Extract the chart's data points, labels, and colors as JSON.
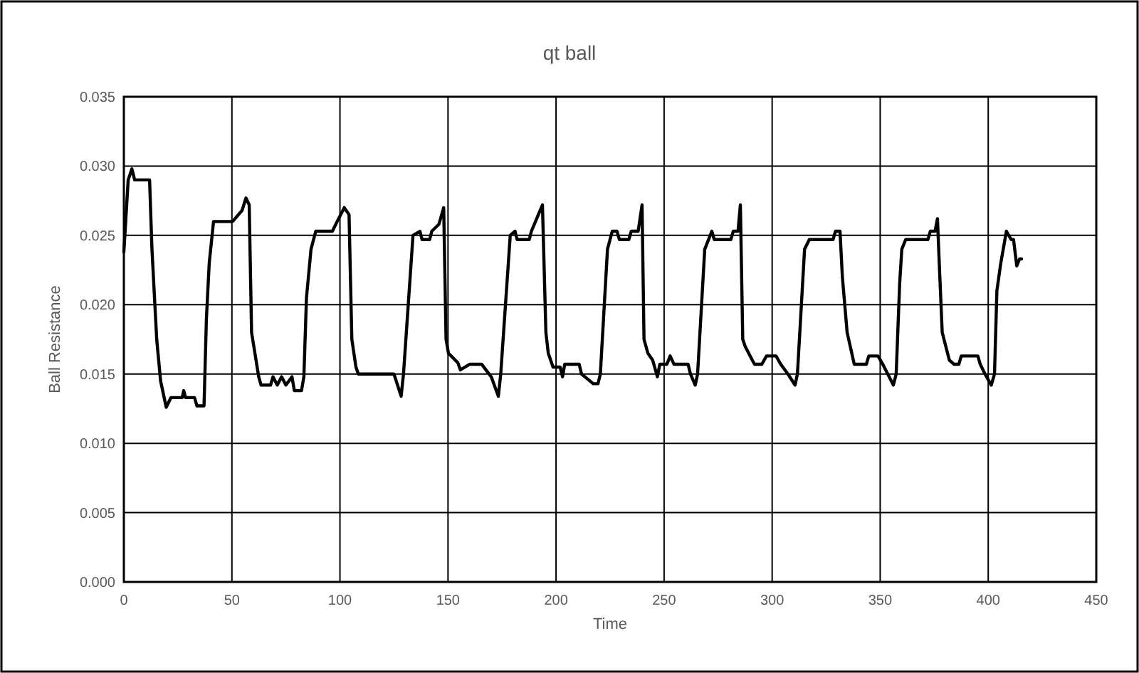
{
  "chart_data": {
    "type": "line",
    "title": "qt ball",
    "xlabel": "Time",
    "ylabel": "Ball Resistance",
    "xlim": [
      0,
      450
    ],
    "xticks": [
      0,
      50,
      100,
      150,
      200,
      250,
      300,
      350,
      400,
      450
    ],
    "ylim": [
      0,
      0.035
    ],
    "yticks": [
      {
        "value": 0,
        "label": "0.000"
      },
      {
        "value": 0.005,
        "label": "0.005"
      },
      {
        "value": 0.01,
        "label": "0.010"
      },
      {
        "value": 0.015,
        "label": "0.015"
      },
      {
        "value": 0.02,
        "label": "0.020"
      },
      {
        "value": 0.025,
        "label": "0.025"
      },
      {
        "value": 0.03,
        "label": "0.030"
      },
      {
        "value": 0.035,
        "label": "0.035"
      }
    ],
    "grid": true,
    "marker": "none",
    "line_style": "solid",
    "series": [
      {
        "color": "#000000",
        "x": [
          0,
          2,
          3.7,
          5,
          11.9,
          13,
          15.2,
          17,
          19.6,
          21.8,
          27,
          27.7,
          28.5,
          32.7,
          33.8,
          37.1,
          38.2,
          39.5,
          41.5,
          50.3,
          54.7,
          56.5,
          58,
          59.1,
          62.4,
          63.5,
          67.9,
          69,
          71,
          73,
          75,
          77.8,
          78.9,
          82.2,
          83.3,
          84.5,
          86.6,
          88.8,
          96.5,
          98.7,
          102,
          104.2,
          105.5,
          107.4,
          108.5,
          125,
          128.3,
          129.4,
          133.8,
          137,
          138,
          141.5,
          142.5,
          145.8,
          148,
          149.1,
          150.2,
          154.6,
          155.7,
          160,
          165.6,
          170,
          173.3,
          174.4,
          178.8,
          181,
          182,
          187.6,
          188.6,
          193.7,
          195.3,
          196.4,
          198.6,
          201.9,
          203,
          204,
          210.7,
          211.8,
          217.2,
          219.4,
          220.5,
          223.8,
          226,
          228.2,
          229.3,
          233.7,
          234.8,
          238,
          239.8,
          240.7,
          242.5,
          244.7,
          246.9,
          248,
          251.3,
          252.8,
          254.6,
          261.1,
          262.2,
          264.4,
          265.5,
          268.8,
          272.1,
          273.2,
          280.9,
          282,
          284.2,
          285.3,
          286.4,
          287.5,
          290.8,
          291.9,
          295.2,
          297.4,
          301.8,
          304,
          307.3,
          310.6,
          311.7,
          315,
          317.2,
          328.2,
          329.3,
          331.4,
          332.5,
          334.7,
          338,
          343.6,
          344.7,
          349,
          351.2,
          353.5,
          356.1,
          357.4,
          359,
          360,
          361.8,
          372.1,
          373.2,
          375.4,
          376.5,
          377.6,
          378.7,
          382,
          384.2,
          386.4,
          387.5,
          395.2,
          396.3,
          398.5,
          401.4,
          402.9,
          404,
          405.8,
          408.4,
          410.6,
          411.7,
          413.2,
          414.5,
          415.4
        ],
        "values": [
          0.0238,
          0.029,
          0.0298,
          0.029,
          0.029,
          0.024,
          0.0175,
          0.0145,
          0.0126,
          0.0133,
          0.0133,
          0.0138,
          0.0133,
          0.0133,
          0.0127,
          0.0127,
          0.019,
          0.023,
          0.026,
          0.026,
          0.0268,
          0.0277,
          0.0272,
          0.018,
          0.0148,
          0.0142,
          0.0142,
          0.0148,
          0.0142,
          0.0148,
          0.0142,
          0.0148,
          0.0138,
          0.0138,
          0.0148,
          0.0205,
          0.024,
          0.0253,
          0.0253,
          0.026,
          0.027,
          0.0265,
          0.0175,
          0.0155,
          0.015,
          0.015,
          0.0134,
          0.015,
          0.025,
          0.0253,
          0.0247,
          0.0247,
          0.0253,
          0.0258,
          0.027,
          0.0175,
          0.0165,
          0.0158,
          0.0153,
          0.0157,
          0.0157,
          0.0148,
          0.0134,
          0.015,
          0.025,
          0.0253,
          0.0247,
          0.0247,
          0.0253,
          0.0272,
          0.018,
          0.0165,
          0.0155,
          0.0155,
          0.0148,
          0.0157,
          0.0157,
          0.015,
          0.0143,
          0.0143,
          0.015,
          0.024,
          0.0253,
          0.0253,
          0.0247,
          0.0247,
          0.0253,
          0.0253,
          0.0272,
          0.0175,
          0.0165,
          0.016,
          0.0148,
          0.0157,
          0.0157,
          0.0163,
          0.0157,
          0.0157,
          0.015,
          0.0142,
          0.015,
          0.024,
          0.0253,
          0.0247,
          0.0247,
          0.0253,
          0.0253,
          0.0272,
          0.0175,
          0.017,
          0.016,
          0.0157,
          0.0157,
          0.0163,
          0.0163,
          0.0157,
          0.015,
          0.0142,
          0.015,
          0.024,
          0.0247,
          0.0247,
          0.0253,
          0.0253,
          0.022,
          0.018,
          0.0157,
          0.0157,
          0.0163,
          0.0163,
          0.0157,
          0.015,
          0.0142,
          0.015,
          0.0215,
          0.024,
          0.0247,
          0.0247,
          0.0253,
          0.0253,
          0.0262,
          0.022,
          0.018,
          0.016,
          0.0157,
          0.0157,
          0.0163,
          0.0163,
          0.0157,
          0.015,
          0.0142,
          0.015,
          0.021,
          0.023,
          0.0253,
          0.0247,
          0.0247,
          0.0228,
          0.0233,
          0.0233
        ]
      }
    ]
  }
}
